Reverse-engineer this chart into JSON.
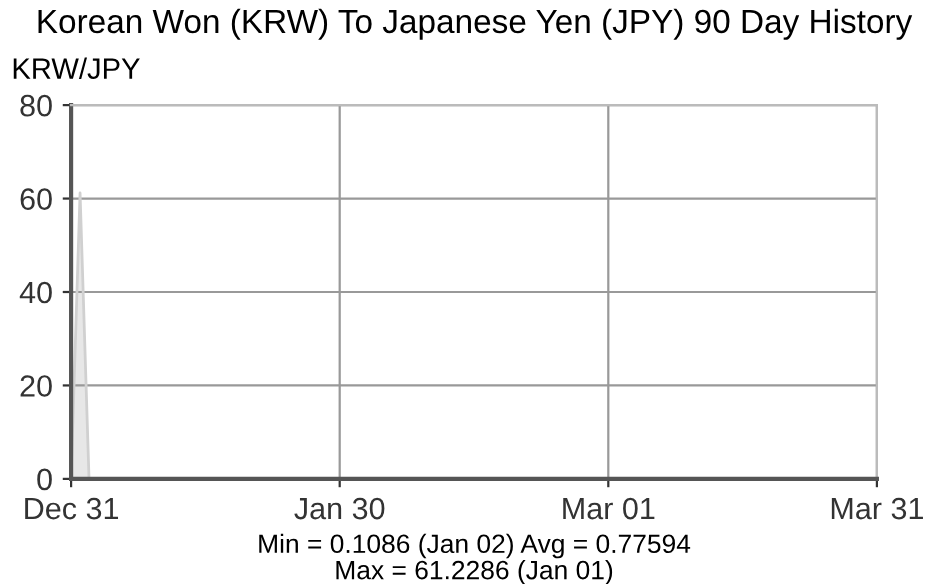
{
  "chart_data": {
    "type": "area",
    "title": "Korean Won (KRW) To Japanese Yen (JPY) 90 Day History",
    "ylabel": "KRW/JPY",
    "categories": [
      "Dec 31",
      null,
      null,
      null,
      null,
      null,
      null,
      null,
      null,
      null,
      null,
      null,
      null,
      null,
      null,
      null,
      null,
      null,
      null,
      null,
      null,
      null,
      null,
      null,
      null,
      null,
      null,
      null,
      null,
      null,
      "Jan 30",
      null,
      null,
      null,
      null,
      null,
      null,
      null,
      null,
      null,
      null,
      null,
      null,
      null,
      null,
      null,
      null,
      null,
      null,
      null,
      null,
      null,
      null,
      null,
      null,
      null,
      null,
      null,
      null,
      null,
      "Mar 01",
      null,
      null,
      null,
      null,
      null,
      null,
      null,
      null,
      null,
      null,
      null,
      null,
      null,
      null,
      null,
      null,
      null,
      null,
      null,
      null,
      null,
      null,
      null,
      null,
      null,
      null,
      null,
      null,
      null,
      "Mar 31"
    ],
    "series": [
      {
        "color": "#d0d0d0",
        "values": [
          0.1,
          61.2,
          0.1,
          0.1,
          0.1,
          0.1,
          0.1,
          0.1,
          0.1,
          0.1,
          0.1,
          0.1,
          0.1,
          0.1,
          0.1,
          0.1,
          0.1,
          0.1,
          0.1,
          0.1,
          0.1,
          0.1,
          0.1,
          0.1,
          0.1,
          0.1,
          0.1,
          0.1,
          0.1,
          0.1,
          0.1,
          0.1,
          0.1,
          0.1,
          0.1,
          0.1,
          0.1,
          0.1,
          0.1,
          0.1,
          0.1,
          0.1,
          0.1,
          0.1,
          0.1,
          0.1,
          0.1,
          0.1,
          0.1,
          0.1,
          0.1,
          0.1,
          0.1,
          0.1,
          0.1,
          0.1,
          0.1,
          0.1,
          0.1,
          0.1,
          0.1,
          0.1,
          0.1,
          0.1,
          0.1,
          0.1,
          0.1,
          0.1,
          0.1,
          0.1,
          0.1,
          0.1,
          0.1,
          0.1,
          0.1,
          0.1,
          0.1,
          0.1,
          0.1,
          0.1,
          0.1,
          0.1,
          0.1,
          0.1,
          0.1,
          0.1,
          0.1,
          0.1,
          0.1,
          0.1,
          0.1
        ]
      }
    ],
    "ylim": [
      0,
      80
    ],
    "yticks": [
      0,
      20,
      40,
      60,
      80
    ],
    "grid": true,
    "annotations": [
      "Min = 0.1086 (Jan 02) Avg = 0.77594",
      "Max = 61.2286 (Jan 01)"
    ]
  }
}
